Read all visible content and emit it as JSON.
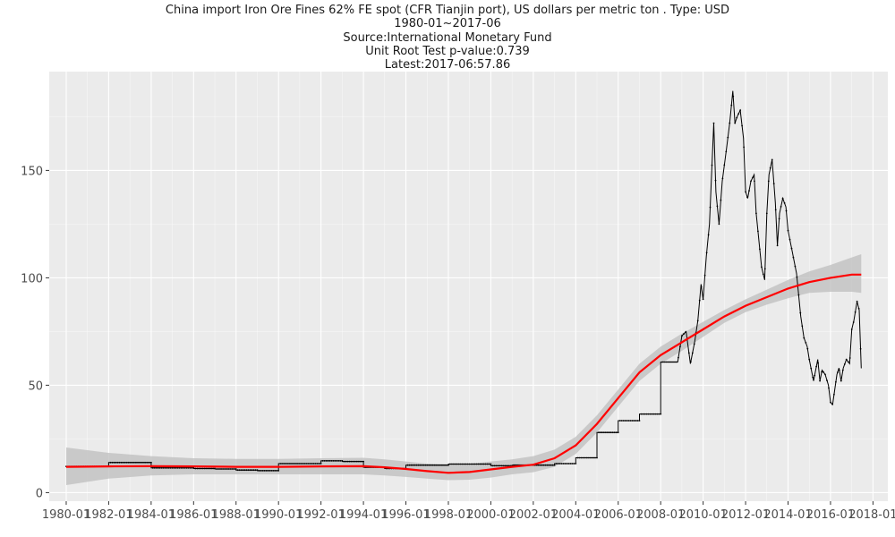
{
  "chart_data": {
    "type": "line",
    "title": "China import Iron Ore Fines 62% FE spot (CFR Tianjin port), US dollars per metric ton . Type: USD",
    "subtitle_lines": [
      "1980-01~2017-06",
      "Source:International Monetary Fund",
      "Unit Root Test p-value:0.739",
      "Latest:2017-06:57.86"
    ],
    "xlabel": "",
    "ylabel": "",
    "xlim": [
      1979.2,
      2018.7
    ],
    "ylim": [
      -4,
      196
    ],
    "x_tick_values": [
      1980,
      1982,
      1984,
      1986,
      1988,
      1990,
      1992,
      1994,
      1996,
      1998,
      2000,
      2002,
      2004,
      2006,
      2008,
      2010,
      2012,
      2014,
      2016,
      2018
    ],
    "x_tick_labels": [
      "1980-01",
      "1982-01",
      "1984-01",
      "1986-01",
      "1988-01",
      "1990-01",
      "1992-01",
      "1994-01",
      "1996-01",
      "1998-01",
      "2000-01",
      "2002-01",
      "2004-01",
      "2006-01",
      "2008-01",
      "2010-01",
      "2012-01",
      "2014-01",
      "2016-01",
      "2018-01"
    ],
    "y_ticks": [
      0,
      50,
      100,
      150
    ],
    "grid": true,
    "series": [
      {
        "role": "observed",
        "color": "#000000",
        "x": [
          1980.0,
          1981.0,
          1982.0,
          1983.0,
          1984.0,
          1985.0,
          1986.0,
          1987.0,
          1988.0,
          1989.0,
          1990.0,
          1991.0,
          1992.0,
          1993.0,
          1994.0,
          1995.0,
          1996.0,
          1997.0,
          1998.0,
          1999.0,
          2000.0,
          2001.0,
          2002.0,
          2003.0,
          2004.0,
          2005.0,
          2006.0,
          2007.0,
          2008.0,
          2008.8,
          2009.0,
          2009.2,
          2009.4,
          2009.6,
          2009.75,
          2009.9,
          2010.0,
          2010.15,
          2010.3,
          2010.5,
          2010.6,
          2010.75,
          2010.9,
          2011.1,
          2011.25,
          2011.4,
          2011.5,
          2011.6,
          2011.75,
          2011.9,
          2012.0,
          2012.1,
          2012.25,
          2012.4,
          2012.5,
          2012.6,
          2012.75,
          2012.9,
          2013.0,
          2013.1,
          2013.25,
          2013.4,
          2013.5,
          2013.6,
          2013.75,
          2013.9,
          2014.0,
          2014.2,
          2014.4,
          2014.6,
          2014.75,
          2014.9,
          2015.0,
          2015.2,
          2015.4,
          2015.5,
          2015.6,
          2015.75,
          2015.9,
          2016.0,
          2016.1,
          2016.3,
          2016.4,
          2016.5,
          2016.6,
          2016.75,
          2016.9,
          2017.0,
          2017.1,
          2017.25,
          2017.35,
          2017.45
        ],
        "y": [
          12.2,
          12.2,
          14.0,
          14.0,
          11.5,
          11.5,
          11.2,
          11.0,
          10.5,
          10.2,
          13.5,
          13.5,
          14.8,
          14.5,
          11.8,
          11.2,
          12.8,
          12.8,
          13.3,
          13.3,
          12.5,
          12.8,
          12.8,
          13.5,
          16.2,
          28.0,
          33.5,
          36.6,
          60.8,
          60.8,
          73.0,
          75.0,
          60.0,
          70.0,
          80.0,
          97.0,
          90.0,
          110.0,
          125.0,
          172.0,
          140.0,
          125.0,
          145.0,
          160.0,
          172.0,
          187.0,
          172.0,
          175.0,
          178.0,
          165.0,
          140.0,
          137.0,
          145.0,
          148.0,
          130.0,
          120.0,
          105.0,
          99.0,
          130.0,
          148.0,
          155.0,
          135.0,
          115.0,
          130.0,
          137.0,
          133.0,
          122.0,
          112.0,
          102.0,
          82.0,
          72.0,
          68.0,
          62.0,
          52.0,
          62.0,
          52.0,
          57.0,
          55.0,
          50.0,
          42.0,
          41.0,
          55.0,
          58.0,
          52.0,
          58.0,
          62.0,
          60.0,
          76.0,
          80.0,
          89.0,
          85.0,
          57.86
        ]
      },
      {
        "role": "smooth",
        "color": "#ff0000",
        "x": [
          1980.0,
          1982.0,
          1984.0,
          1986.0,
          1988.0,
          1990.0,
          1992.0,
          1994.0,
          1995.0,
          1996.0,
          1997.0,
          1998.0,
          1999.0,
          2000.0,
          2001.0,
          2002.0,
          2003.0,
          2004.0,
          2005.0,
          2006.0,
          2007.0,
          2008.0,
          2009.0,
          2010.0,
          2011.0,
          2012.0,
          2013.0,
          2014.0,
          2015.0,
          2016.0,
          2017.0,
          2017.45
        ],
        "y": [
          12.0,
          12.2,
          12.3,
          12.2,
          12.0,
          12.0,
          12.2,
          12.3,
          11.8,
          11.0,
          10.0,
          9.2,
          9.6,
          10.8,
          12.0,
          13.0,
          16.0,
          22.0,
          32.0,
          44.0,
          56.0,
          64.0,
          70.0,
          76.0,
          82.0,
          87.0,
          91.0,
          95.0,
          98.0,
          100.0,
          101.5,
          101.5
        ],
        "band_upper": [
          21.0,
          18.5,
          17.0,
          16.0,
          15.7,
          15.7,
          16.0,
          16.2,
          15.5,
          14.5,
          13.5,
          13.0,
          13.4,
          14.5,
          15.5,
          17.0,
          20.0,
          26.0,
          36.0,
          48.0,
          60.0,
          68.0,
          74.0,
          79.5,
          85.0,
          90.0,
          94.5,
          99.0,
          103.0,
          106.0,
          109.5,
          111.0
        ],
        "band_lower": [
          3.5,
          6.5,
          8.0,
          8.5,
          8.5,
          8.5,
          8.5,
          8.5,
          8.0,
          7.3,
          6.5,
          5.8,
          6.0,
          7.0,
          8.5,
          9.5,
          12.0,
          18.0,
          28.0,
          40.0,
          52.0,
          60.0,
          66.0,
          72.5,
          79.0,
          84.0,
          87.5,
          90.5,
          93.0,
          93.5,
          93.5,
          93.0
        ]
      }
    ]
  },
  "colors": {
    "panel_background": "#ebebeb",
    "grid_major": "#ffffff",
    "band_fill": "#bdbdbd",
    "observed_line": "#000000",
    "smooth_line": "#ff0000",
    "tick_text": "#4d4d4d"
  }
}
